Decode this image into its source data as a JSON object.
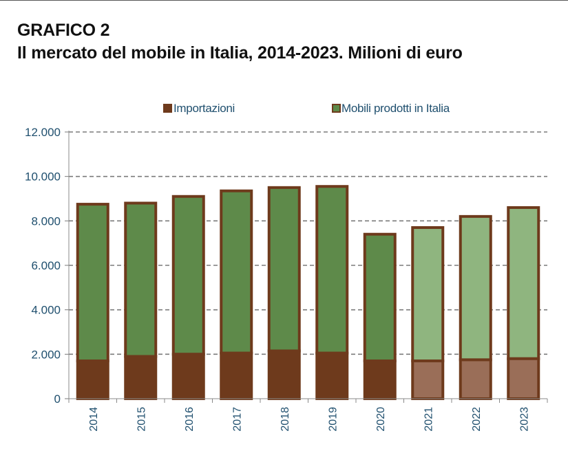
{
  "header": {
    "label": "GRAFICO 2",
    "title": "Il mercato del mobile in Italia, 2014-2023. Milioni di euro"
  },
  "colors": {
    "import": "#6e3a1c",
    "import_light": "#9a6e58",
    "domestic": "#5e8a4a",
    "domestic_light": "#8fb57f",
    "border": "#6e3a1c",
    "axis_text": "#1f4f6e",
    "grid": "#7a7a7a"
  },
  "chart_data": {
    "type": "bar",
    "stacked": true,
    "categories": [
      "2014",
      "2015",
      "2016",
      "2017",
      "2018",
      "2019",
      "2020",
      "2021",
      "2022",
      "2023"
    ],
    "series": [
      {
        "name": "Importazioni",
        "values": [
          1700,
          1900,
          2000,
          2050,
          2150,
          2050,
          1700,
          1700,
          1750,
          1800
        ]
      },
      {
        "name": "Mobili prodotti in Italia",
        "values": [
          7050,
          6900,
          7100,
          7300,
          7350,
          7500,
          5700,
          6000,
          6450,
          6800
        ]
      }
    ],
    "light_categories": [
      "2021",
      "2022",
      "2023"
    ],
    "ylim": [
      0,
      12000
    ],
    "yticks": [
      {
        "value": 0,
        "label": "0"
      },
      {
        "value": 2000,
        "label": "2.000"
      },
      {
        "value": 4000,
        "label": "4.000"
      },
      {
        "value": 6000,
        "label": "6.000"
      },
      {
        "value": 8000,
        "label": "8.000"
      },
      {
        "value": 10000,
        "label": "10.000"
      },
      {
        "value": 12000,
        "label": "12.000"
      }
    ],
    "grid": true,
    "legend_position": "top"
  }
}
